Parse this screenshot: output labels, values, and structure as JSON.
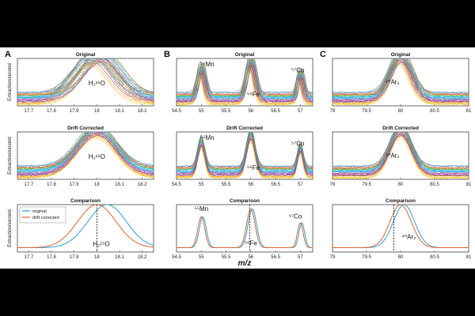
{
  "figure": {
    "xlabel": "m/z",
    "yaxis_label": "Extraction/second",
    "legend": [
      {
        "name": "original",
        "color": "#2a9fd8"
      },
      {
        "name": "drift corrected",
        "color": "#e2622d"
      }
    ],
    "colors": {
      "original": "#2a9fd8",
      "corrected": "#e2622d",
      "spectra": [
        "#f2c21a",
        "#f0a030",
        "#7b2f8e",
        "#a04aa0",
        "#2a9fd8",
        "#22b8e8",
        "#5aa832",
        "#e2622d",
        "#3a7fc0"
      ],
      "marker": "#000000"
    }
  },
  "chart_data": [
    {
      "id": "A",
      "panel_label": "A",
      "column": 0,
      "row": 0,
      "type": "line",
      "title": "Original",
      "xlim": [
        17.65,
        18.25
      ],
      "xticks": [
        17.7,
        17.8,
        17.9,
        18,
        18.1,
        18.2
      ],
      "xtick_labels": [
        "17.7",
        "17.8",
        "17.9",
        "18",
        "18.1",
        "18.2"
      ],
      "mode": "overlay",
      "shift_spread": 0.04,
      "ylim": [
        0,
        1.1
      ],
      "peaks": [
        {
          "x": 18.0,
          "w": 0.12,
          "h": 1.0
        }
      ],
      "annotations": [
        {
          "text": "H₂¹⁶O",
          "x": 18.0,
          "y": 0.48
        }
      ]
    },
    {
      "id": "B",
      "panel_label": "B",
      "column": 1,
      "row": 0,
      "type": "line",
      "title": "Original",
      "xlim": [
        54.5,
        57.25
      ],
      "xticks": [
        54.5,
        55,
        55.5,
        56,
        56.5,
        57
      ],
      "xtick_labels": [
        "54.5",
        "55",
        "55.5",
        "56",
        "56.5",
        "57"
      ],
      "mode": "overlay",
      "shift_spread": 0.05,
      "ylim": [
        0,
        1.1
      ],
      "peaks": [
        {
          "x": 55.0,
          "w": 0.1,
          "h": 0.72
        },
        {
          "x": 56.0,
          "w": 0.12,
          "h": 0.9
        },
        {
          "x": 57.0,
          "w": 0.08,
          "h": 0.58
        }
      ],
      "annotations": [
        {
          "text": "⁵⁵Mn",
          "x": 55.12,
          "y": 0.92
        },
        {
          "text": "⁵⁶Fe",
          "x": 56.05,
          "y": 0.22
        },
        {
          "text": "⁵⁷Co",
          "x": 56.95,
          "y": 0.78
        }
      ]
    },
    {
      "id": "C",
      "panel_label": "C",
      "column": 2,
      "row": 0,
      "type": "line",
      "title": "Original",
      "xlim": [
        79,
        81
      ],
      "xticks": [
        79,
        79.5,
        80,
        80.5,
        81
      ],
      "xtick_labels": [
        "79",
        "79.5",
        "80",
        "80.5",
        "81"
      ],
      "mode": "overlay",
      "shift_spread": 0.04,
      "ylim": [
        0,
        1.1
      ],
      "peaks": [
        {
          "x": 80.0,
          "w": 0.22,
          "h": 1.0
        }
      ],
      "annotations": [
        {
          "text": "⁴⁰Ar₂",
          "x": 79.88,
          "y": 0.5
        }
      ]
    },
    {
      "id": "A2",
      "column": 0,
      "row": 1,
      "type": "line",
      "title": "Drift Corrected",
      "xlim": [
        17.65,
        18.25
      ],
      "xticks": [
        17.7,
        17.8,
        17.9,
        18,
        18.1,
        18.2
      ],
      "xtick_labels": [
        "17.7",
        "17.8",
        "17.9",
        "18",
        "18.1",
        "18.2"
      ],
      "mode": "overlay",
      "shift_spread": 0.005,
      "ylim": [
        0,
        1.1
      ],
      "peaks": [
        {
          "x": 18.0,
          "w": 0.12,
          "h": 1.0
        }
      ],
      "annotations": [
        {
          "text": "H₂¹⁶O",
          "x": 18.0,
          "y": 0.48
        }
      ]
    },
    {
      "id": "B2",
      "column": 1,
      "row": 1,
      "type": "line",
      "title": "Drift Corrected",
      "xlim": [
        54.5,
        57.25
      ],
      "xticks": [
        54.5,
        55,
        55.5,
        56,
        56.5,
        57
      ],
      "xtick_labels": [
        "54.5",
        "55",
        "55.5",
        "56",
        "56.5",
        "57"
      ],
      "mode": "overlay",
      "shift_spread": 0.005,
      "ylim": [
        0,
        1.1
      ],
      "peaks": [
        {
          "x": 55.0,
          "w": 0.1,
          "h": 0.72
        },
        {
          "x": 56.0,
          "w": 0.12,
          "h": 0.9
        },
        {
          "x": 57.0,
          "w": 0.08,
          "h": 0.58
        }
      ],
      "annotations": [
        {
          "text": "⁵⁵Mn",
          "x": 55.12,
          "y": 0.92
        },
        {
          "text": "⁵⁶Fe",
          "x": 56.05,
          "y": 0.22
        },
        {
          "text": "⁵⁷Co",
          "x": 56.95,
          "y": 0.78
        }
      ]
    },
    {
      "id": "C2",
      "column": 2,
      "row": 1,
      "type": "line",
      "title": "Drift Corrected",
      "xlim": [
        79,
        81
      ],
      "xticks": [
        79,
        79.5,
        80,
        80.5,
        81
      ],
      "xtick_labels": [
        "79",
        "79.5",
        "80",
        "80.5",
        "81"
      ],
      "mode": "overlay",
      "shift_spread": 0.005,
      "ylim": [
        0,
        1.1
      ],
      "peaks": [
        {
          "x": 80.0,
          "w": 0.22,
          "h": 1.0
        }
      ],
      "annotations": [
        {
          "text": "⁴⁰Ar₂",
          "x": 79.88,
          "y": 0.5
        }
      ]
    },
    {
      "id": "A3",
      "column": 0,
      "row": 2,
      "type": "line",
      "title": "Comparison",
      "xlim": [
        17.65,
        18.25
      ],
      "xticks": [
        17.7,
        17.8,
        17.9,
        18,
        18.1,
        18.2
      ],
      "xtick_labels": [
        "17.7",
        "17.8",
        "17.9",
        "18",
        "18.1",
        "18.2"
      ],
      "mode": "compare",
      "ylim": [
        0,
        1.1
      ],
      "marker_x": 18.0,
      "legend": true,
      "series": [
        {
          "name": "original",
          "shift": 0.045,
          "color": "#2a9fd8",
          "peaks": [
            {
              "x": 18.0,
              "w": 0.12,
              "h": 1.0
            }
          ]
        },
        {
          "name": "drift corrected",
          "shift": 0.0,
          "color": "#e2622d",
          "peaks": [
            {
              "x": 18.0,
              "w": 0.12,
              "h": 1.0
            }
          ]
        }
      ],
      "annotations": [
        {
          "text": "H₂¹⁶O",
          "x": 18.02,
          "y": 0.14
        }
      ]
    },
    {
      "id": "B3",
      "column": 1,
      "row": 2,
      "type": "line",
      "title": "Comparison",
      "xlim": [
        54.5,
        57.25
      ],
      "xticks": [
        54.5,
        55,
        55.5,
        56,
        56.5,
        57
      ],
      "xtick_labels": [
        "54.5",
        "55",
        "55.5",
        "56",
        "56.5",
        "57"
      ],
      "mode": "compare",
      "ylim": [
        0,
        1.1
      ],
      "marker_x": 55.98,
      "series": [
        {
          "name": "original",
          "shift": 0.03,
          "color": "#2a9fd8",
          "peaks": [
            {
              "x": 55.0,
              "w": 0.1,
              "h": 0.72
            },
            {
              "x": 56.0,
              "w": 0.12,
              "h": 0.9
            },
            {
              "x": 57.0,
              "w": 0.08,
              "h": 0.58
            }
          ]
        },
        {
          "name": "drift corrected",
          "shift": 0.0,
          "color": "#e2622d",
          "peaks": [
            {
              "x": 55.0,
              "w": 0.1,
              "h": 0.72
            },
            {
              "x": 56.0,
              "w": 0.12,
              "h": 0.9
            },
            {
              "x": 57.0,
              "w": 0.08,
              "h": 0.58
            }
          ]
        }
      ],
      "annotations": [
        {
          "text": "⁵⁵Mn",
          "x": 55.0,
          "y": 0.95
        },
        {
          "text": "⁵⁶Fe",
          "x": 56.0,
          "y": 0.16
        },
        {
          "text": "⁵⁷Co",
          "x": 56.9,
          "y": 0.78
        }
      ]
    },
    {
      "id": "C3",
      "column": 2,
      "row": 2,
      "type": "line",
      "title": "Comparison",
      "xlim": [
        79,
        81
      ],
      "xticks": [
        79,
        79.5,
        80,
        80.5,
        81
      ],
      "xtick_labels": [
        "79",
        "79.5",
        "80",
        "80.5",
        "81"
      ],
      "mode": "compare",
      "ylim": [
        0,
        1.1
      ],
      "marker_x": 79.9,
      "series": [
        {
          "name": "original",
          "shift": 0.05,
          "color": "#2a9fd8",
          "peaks": [
            {
              "x": 80.0,
              "w": 0.22,
              "h": 1.0
            }
          ]
        },
        {
          "name": "drift corrected",
          "shift": 0.0,
          "color": "#e2622d",
          "peaks": [
            {
              "x": 80.0,
              "w": 0.22,
              "h": 1.0
            }
          ]
        }
      ],
      "annotations": [
        {
          "text": "⁴⁰Ar₂",
          "x": 80.12,
          "y": 0.3
        }
      ]
    }
  ]
}
